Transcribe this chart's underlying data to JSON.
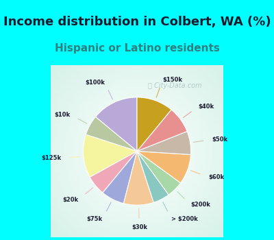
{
  "title": "Income distribution in Colbert, WA (%)",
  "subtitle": "Hispanic or Latino residents",
  "background_outer": "#00FFFF",
  "background_chart_color": "#d4ede8",
  "watermark": "City-Data.com",
  "labels": [
    "$100k",
    "$10k",
    "$125k",
    "$20k",
    "$75k",
    "$30k",
    "> $200k",
    "$200k",
    "$60k",
    "$50k",
    "$40k",
    "$150k"
  ],
  "values": [
    14,
    6,
    13,
    6,
    7,
    9,
    5,
    5,
    9,
    7,
    8,
    11
  ],
  "colors": [
    "#b8a9d9",
    "#b8c8a0",
    "#f5f5a0",
    "#f0a8b8",
    "#9fa8da",
    "#f5c898",
    "#88c8c0",
    "#a8d8a8",
    "#f5b870",
    "#c8b8a8",
    "#e89090",
    "#c8a020"
  ],
  "title_fontsize": 13,
  "subtitle_fontsize": 11,
  "title_color": "#1a1a2e",
  "subtitle_color": "#2e8080"
}
